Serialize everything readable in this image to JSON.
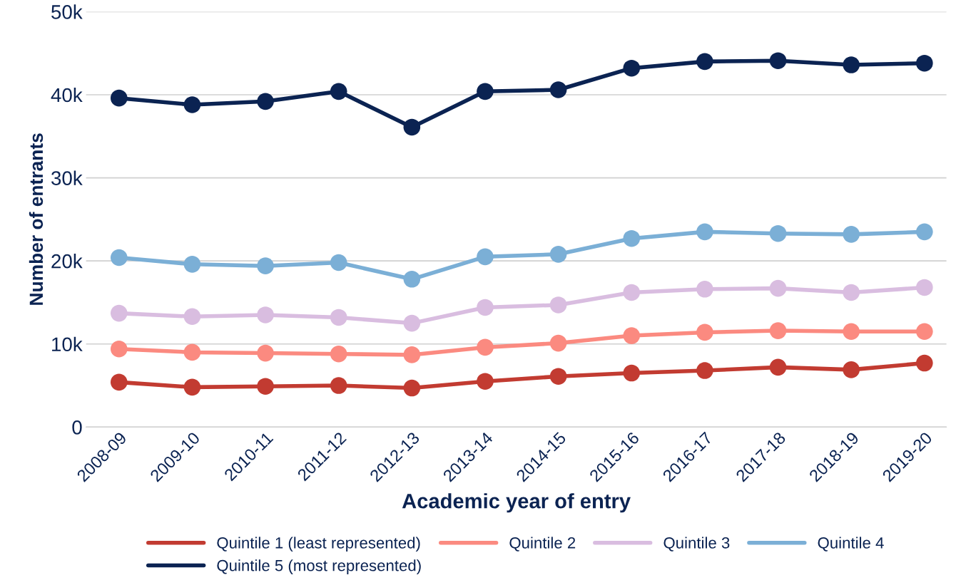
{
  "chart_data": {
    "type": "line",
    "xlabel": "Academic year of entry",
    "ylabel": "Number of entrants",
    "categories": [
      "2008-09",
      "2009-10",
      "2010-11",
      "2011-12",
      "2012-13",
      "2013-14",
      "2014-15",
      "2015-16",
      "2016-17",
      "2017-18",
      "2018-19",
      "2019-20"
    ],
    "series": [
      {
        "name": "Quintile 1 (least represented)",
        "color": "#c23b31",
        "values": [
          5400,
          4800,
          4900,
          5000,
          4700,
          5500,
          6100,
          6500,
          6800,
          7200,
          6900,
          7700
        ]
      },
      {
        "name": "Quintile 2",
        "color": "#fb8a80",
        "values": [
          9400,
          9000,
          8900,
          8800,
          8700,
          9600,
          10100,
          11000,
          11400,
          11600,
          11500,
          11500
        ]
      },
      {
        "name": "Quintile 3",
        "color": "#d9bde0",
        "values": [
          13700,
          13300,
          13500,
          13200,
          12500,
          14400,
          14700,
          16200,
          16600,
          16700,
          16200,
          16800
        ]
      },
      {
        "name": "Quintile 4",
        "color": "#7bafd6",
        "values": [
          20400,
          19600,
          19400,
          19800,
          17800,
          20500,
          20800,
          22700,
          23500,
          23300,
          23200,
          23500
        ]
      },
      {
        "name": "Quintile 5 (most represented)",
        "color": "#0b2352",
        "values": [
          39600,
          38800,
          39200,
          40400,
          36100,
          40400,
          40600,
          43200,
          44000,
          44100,
          43600,
          43800
        ]
      }
    ],
    "ylim": [
      0,
      50000
    ],
    "yticks": [
      0,
      {
        "value": 10000,
        "label": "10k"
      },
      {
        "value": 20000,
        "label": "20k"
      },
      {
        "value": 30000,
        "label": "30k"
      },
      {
        "value": 40000,
        "label": "40k"
      },
      {
        "value": 50000,
        "label": "50k"
      }
    ],
    "grid": "y",
    "legend": "bottom",
    "marker": "circle",
    "line_style": "solid"
  }
}
